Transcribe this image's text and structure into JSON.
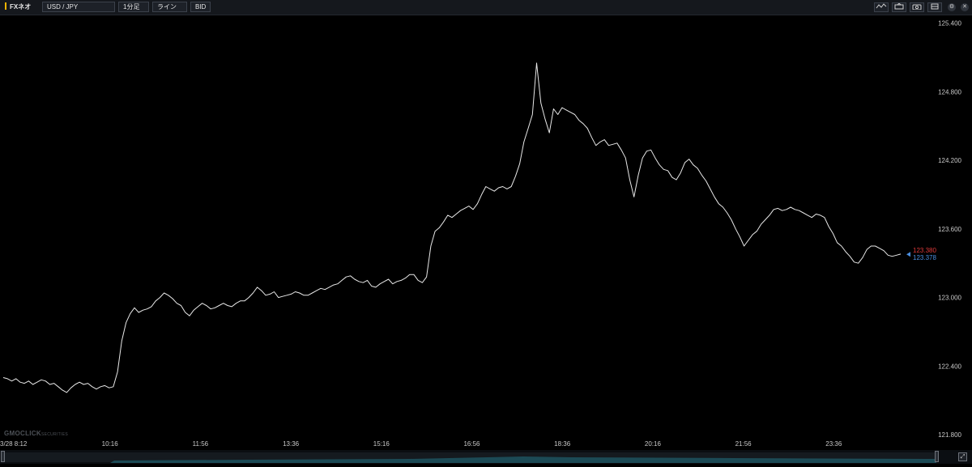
{
  "toolbar": {
    "brand": "FXネオ",
    "pair": "USD / JPY",
    "interval": "1分足",
    "chart_type": "ライン",
    "price_type": "BID",
    "icons": [
      "indicator-icon",
      "draw-icon",
      "camera-icon",
      "layout-icon",
      "settings-icon",
      "close-icon"
    ]
  },
  "watermark": {
    "main": "GMOCLICK",
    "sub": "SECURITIES"
  },
  "colors": {
    "background": "#000000",
    "line": "#e8e8e8",
    "ask_label": "#e03a3a",
    "bid_label": "#4b8fe0",
    "axis_text": "#c8c8c8",
    "navigator_fill": "#1c4a55"
  },
  "chart_data": {
    "type": "line",
    "title": "",
    "xlabel": "",
    "ylabel": "",
    "x_ticks": [
      "3/28 8:12",
      "10:16",
      "11:56",
      "13:36",
      "15:16",
      "16:56",
      "18:36",
      "20:16",
      "21:56",
      "23:36"
    ],
    "y_ticks": [
      "125.400",
      "124.800",
      "124.200",
      "123.600",
      "123.000",
      "122.400",
      "121.800"
    ],
    "ylim": [
      121.78,
      125.46
    ],
    "grid": false,
    "series": [
      {
        "values": [
          122.3,
          122.29,
          122.27,
          122.29,
          122.26,
          122.25,
          122.27,
          122.24,
          122.26,
          122.28,
          122.27,
          122.24,
          122.25,
          122.22,
          122.19,
          122.17,
          122.21,
          122.24,
          122.26,
          122.24,
          122.25,
          122.22,
          122.2,
          122.22,
          122.23,
          122.21,
          122.22,
          122.35,
          122.62,
          122.78,
          122.86,
          122.91,
          122.87,
          122.89,
          122.9,
          122.92,
          122.97,
          123.0,
          123.04,
          123.02,
          122.99,
          122.95,
          122.93,
          122.87,
          122.84,
          122.89,
          122.92,
          122.95,
          122.93,
          122.9,
          122.91,
          122.93,
          122.95,
          122.93,
          122.92,
          122.95,
          122.97,
          122.97,
          123.0,
          123.04,
          123.09,
          123.06,
          123.02,
          123.03,
          123.05,
          123.0,
          123.01,
          123.02,
          123.03,
          123.05,
          123.04,
          123.02,
          123.02,
          123.04,
          123.06,
          123.08,
          123.07,
          123.09,
          123.11,
          123.12,
          123.15,
          123.18,
          123.19,
          123.16,
          123.14,
          123.13,
          123.15,
          123.1,
          123.09,
          123.12,
          123.14,
          123.16,
          123.12,
          123.14,
          123.15,
          123.17,
          123.2,
          123.2,
          123.15,
          123.13,
          123.18,
          123.45,
          123.58,
          123.61,
          123.66,
          123.72,
          123.7,
          123.73,
          123.76,
          123.78,
          123.8,
          123.77,
          123.82,
          123.9,
          123.97,
          123.95,
          123.93,
          123.96,
          123.97,
          123.95,
          123.97,
          124.06,
          124.17,
          124.36,
          124.48,
          124.6,
          125.05,
          124.7,
          124.56,
          124.44,
          124.65,
          124.6,
          124.66,
          124.64,
          124.62,
          124.6,
          124.55,
          124.52,
          124.48,
          124.4,
          124.33,
          124.36,
          124.38,
          124.33,
          124.34,
          124.35,
          124.29,
          124.22,
          124.03,
          123.88,
          124.07,
          124.22,
          124.28,
          124.29,
          124.22,
          124.16,
          124.12,
          124.11,
          124.05,
          124.03,
          124.09,
          124.18,
          124.21,
          124.16,
          124.13,
          124.07,
          124.02,
          123.95,
          123.88,
          123.82,
          123.79,
          123.74,
          123.68,
          123.6,
          123.53,
          123.45,
          123.5,
          123.55,
          123.58,
          123.64,
          123.68,
          123.72,
          123.77,
          123.78,
          123.76,
          123.77,
          123.79,
          123.77,
          123.76,
          123.74,
          123.72,
          123.7,
          123.73,
          123.72,
          123.7,
          123.62,
          123.56,
          123.48,
          123.45,
          123.4,
          123.36,
          123.31,
          123.3,
          123.35,
          123.42,
          123.45,
          123.45,
          123.43,
          123.41,
          123.37,
          123.36,
          123.37,
          123.38
        ],
        "last_ask": 123.38,
        "last_bid": 123.378
      }
    ],
    "last_price_labels": {
      "ask": "123.380",
      "bid": "123.378"
    }
  },
  "navigator": {
    "range": "full"
  }
}
